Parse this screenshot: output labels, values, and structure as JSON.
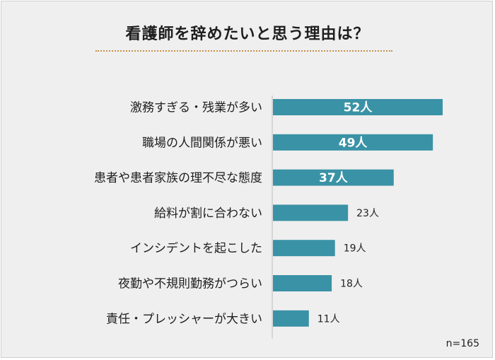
{
  "title": "看護師を辞めたいと思う理由は？",
  "note": "n=165",
  "chart_data": {
    "type": "bar",
    "orientation": "horizontal",
    "title": "看護師を辞めたいと思う理由は？",
    "categories": [
      "激務すぎる・残業が多い",
      "職場の人間関係が悪い",
      "患者や患者家族の理不尽な態度",
      "給料が割に合わない",
      "インシデントを起こした",
      "夜勤や不規則勤務がつらい",
      "責任・プレッシャーが大きい"
    ],
    "values": [
      52,
      49,
      37,
      23,
      19,
      18,
      11
    ],
    "labels": [
      "52人",
      "49人",
      "37人",
      "23人",
      "19人",
      "18人",
      "11人"
    ],
    "unit": "人",
    "bar_color": "#3a92a6",
    "label_inside_color": "#ffffff",
    "label_outside_color": "#222222"
  }
}
